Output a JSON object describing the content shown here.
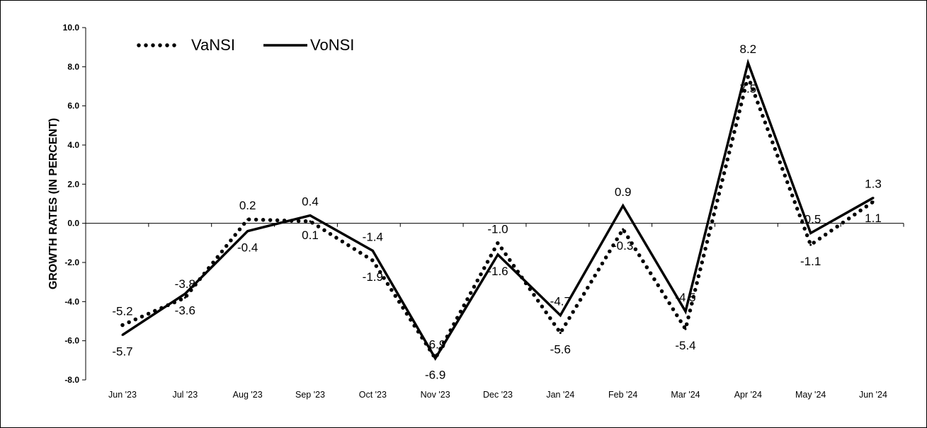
{
  "chart_data": {
    "type": "line",
    "categories": [
      "Jun '23",
      "Jul '23",
      "Aug '23",
      "Sep '23",
      "Oct '23",
      "Nov '23",
      "Dec '23",
      "Jan '24",
      "Feb '24",
      "Mar '24",
      "Apr '24",
      "May '24",
      "Jun '24"
    ],
    "ylabel": "GROWTH RATES (IN PERCENT)",
    "ylim": [
      -8.0,
      10.0
    ],
    "yticks": [
      "10.0",
      "8.0",
      "6.0",
      "4.0",
      "2.0",
      "0.0",
      "-2.0",
      "-4.0",
      "-6.0",
      "-8.0"
    ],
    "legend_position": "top-left",
    "grid": false,
    "series": [
      {
        "name": "VaNSI",
        "style": "dotted",
        "values": [
          -5.2,
          -3.8,
          0.2,
          0.1,
          -1.9,
          -6.9,
          -1.0,
          -5.6,
          -0.3,
          -5.4,
          7.5,
          -1.1,
          1.1
        ],
        "labels": [
          "-5.2",
          "-3.8",
          "0.2",
          "0.1",
          "-1.9",
          "-6.9",
          "-1.0",
          "-5.6",
          "-0.3",
          "-5.4",
          "7.5",
          "-1.1",
          "1.1"
        ]
      },
      {
        "name": "VoNSI",
        "style": "solid",
        "values": [
          -5.7,
          -3.6,
          -0.4,
          0.4,
          -1.4,
          -6.9,
          -1.6,
          -4.7,
          0.9,
          -4.5,
          8.2,
          -0.5,
          1.3
        ],
        "labels": [
          "-5.7",
          "-3.6",
          "-0.4",
          "0.4",
          "-1.4",
          "-6.9",
          "-1.6",
          "-4.7",
          "0.9",
          "-4.5",
          "8.2",
          "-0.5",
          "1.3"
        ]
      }
    ],
    "colors": {
      "line": "#000000",
      "axis": "#000000"
    }
  }
}
